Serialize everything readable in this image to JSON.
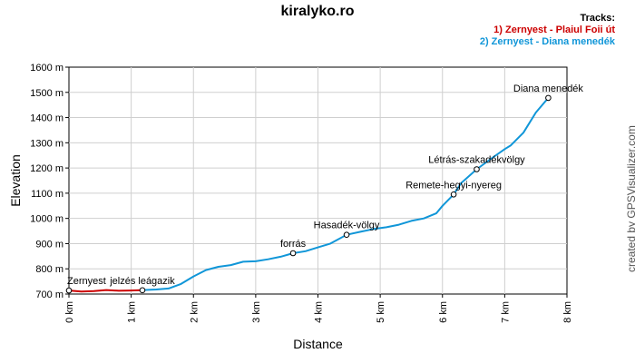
{
  "title": "kiralyko.ro",
  "legend": {
    "header": "Tracks:",
    "items": [
      {
        "label": "1) Zernyest - Plaiul Foii út",
        "color": "#cc0000"
      },
      {
        "label": "2) Zernyest - Diana menedék",
        "color": "#1096d8"
      }
    ]
  },
  "credit": "created by GPSVisualizer.com",
  "chart_data": {
    "type": "line",
    "title": "kiralyko.ro",
    "xlabel": "Distance",
    "ylabel": "Elevation",
    "xlim": [
      0,
      8
    ],
    "ylim": [
      700,
      1600
    ],
    "x_ticks": [
      "0 km",
      "1 km",
      "2 km",
      "3 km",
      "4 km",
      "5 km",
      "6 km",
      "7 km",
      "8 km"
    ],
    "y_ticks": [
      "700 m",
      "800 m",
      "900 m",
      "1000 m",
      "1100 m",
      "1200 m",
      "1300 m",
      "1400 m",
      "1500 m",
      "1600 m"
    ],
    "grid": true,
    "series": [
      {
        "name": "1) Zernyest - Plaiul Foii út",
        "color": "#cc0000",
        "x": [
          0,
          0.2,
          0.4,
          0.6,
          0.8,
          1.0,
          1.15
        ],
        "y": [
          714,
          710,
          712,
          716,
          713,
          714,
          715
        ]
      },
      {
        "name": "2) Zernyest - Diana menedék",
        "color": "#1096d8",
        "x": [
          1.15,
          1.4,
          1.6,
          1.8,
          2.0,
          2.2,
          2.4,
          2.6,
          2.8,
          3.0,
          3.2,
          3.4,
          3.6,
          3.8,
          4.0,
          4.2,
          4.46,
          4.7,
          4.9,
          5.1,
          5.3,
          5.5,
          5.7,
          5.9,
          6.0,
          6.18,
          6.3,
          6.55,
          6.8,
          7.0,
          7.1,
          7.3,
          7.5,
          7.7
        ],
        "y": [
          715,
          718,
          722,
          740,
          770,
          795,
          808,
          815,
          828,
          830,
          838,
          848,
          862,
          870,
          885,
          900,
          935,
          948,
          958,
          965,
          975,
          990,
          1000,
          1020,
          1050,
          1095,
          1140,
          1195,
          1240,
          1275,
          1290,
          1340,
          1420,
          1478
        ]
      }
    ],
    "waypoints": [
      {
        "label": "Zernyest",
        "x": 0,
        "y": 714
      },
      {
        "label": "jelzés leágazik",
        "x": 1.18,
        "y": 715
      },
      {
        "label": "forrás",
        "x": 3.6,
        "y": 862
      },
      {
        "label": "Hasadék-völgy",
        "x": 4.46,
        "y": 935
      },
      {
        "label": "Remete-hegyi-nyereg",
        "x": 6.18,
        "y": 1095
      },
      {
        "label": "Létrás-szakadékvölgy",
        "x": 6.55,
        "y": 1195
      },
      {
        "label": "Diana menedék",
        "x": 7.7,
        "y": 1478
      }
    ]
  }
}
